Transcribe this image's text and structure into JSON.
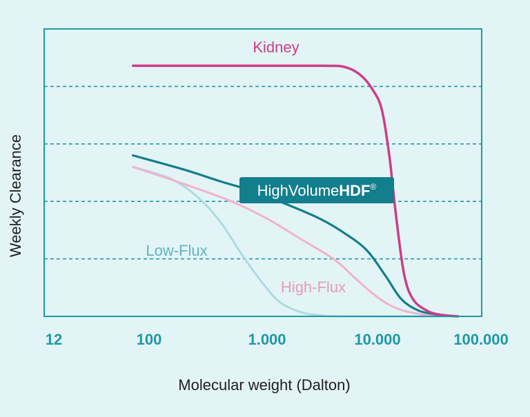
{
  "chart_data": {
    "type": "line",
    "title": "",
    "xlabel": "Molecular weight (Dalton)",
    "ylabel": "Weekly Clearance",
    "x_scale": "log",
    "xlim": [
      12,
      100000
    ],
    "ylim": [
      0,
      1
    ],
    "x_ticks": [
      12,
      100,
      1000,
      10000,
      100000
    ],
    "x_tick_labels": [
      "12",
      "100",
      "1.000",
      "10.000",
      "100.000"
    ],
    "y_grid_lines": [
      0.2,
      0.4,
      0.6,
      0.8
    ],
    "grid": "horizontal dashed",
    "legend": "inline labels",
    "series": [
      {
        "name": "Kidney",
        "color": "#cc3d86",
        "points": [
          [
            70,
            0.872
          ],
          [
            500,
            0.872
          ],
          [
            3000,
            0.872
          ],
          [
            5000,
            0.868
          ],
          [
            7000,
            0.84
          ],
          [
            9000,
            0.79
          ],
          [
            11000,
            0.72
          ],
          [
            13000,
            0.56
          ],
          [
            15000,
            0.36
          ],
          [
            18000,
            0.15
          ],
          [
            22000,
            0.06
          ],
          [
            30000,
            0.02
          ],
          [
            40000,
            0.006
          ],
          [
            60000,
            0.0
          ]
        ]
      },
      {
        "name": "HighVolumeHDF®",
        "color": "#137e8c",
        "points": [
          [
            70,
            0.56
          ],
          [
            200,
            0.51
          ],
          [
            400,
            0.47
          ],
          [
            700,
            0.44
          ],
          [
            1500,
            0.39
          ],
          [
            3000,
            0.34
          ],
          [
            5000,
            0.29
          ],
          [
            8000,
            0.23
          ],
          [
            12000,
            0.14
          ],
          [
            17000,
            0.06
          ],
          [
            25000,
            0.02
          ],
          [
            40000,
            0.005
          ],
          [
            60000,
            0.0
          ]
        ]
      },
      {
        "name": "High-Flux",
        "color": "#f2b2cc",
        "points": [
          [
            70,
            0.52
          ],
          [
            200,
            0.46
          ],
          [
            500,
            0.4
          ],
          [
            1000,
            0.34
          ],
          [
            2000,
            0.27
          ],
          [
            4000,
            0.2
          ],
          [
            6000,
            0.14
          ],
          [
            9000,
            0.08
          ],
          [
            13000,
            0.04
          ],
          [
            20000,
            0.015
          ],
          [
            35000,
            0.003
          ],
          [
            55000,
            0.0
          ]
        ]
      },
      {
        "name": "Low-Flux",
        "color": "#acdbe1",
        "points": [
          [
            70,
            0.52
          ],
          [
            150,
            0.48
          ],
          [
            250,
            0.42
          ],
          [
            400,
            0.33
          ],
          [
            600,
            0.22
          ],
          [
            900,
            0.12
          ],
          [
            1300,
            0.05
          ],
          [
            2000,
            0.015
          ],
          [
            3000,
            0.004
          ],
          [
            5000,
            0.0
          ],
          [
            60000,
            0.0
          ]
        ]
      }
    ],
    "annotations": [
      {
        "text": "Kidney",
        "series": "Kidney"
      },
      {
        "text": "HighVolume",
        "bold_suffix": "HDF",
        "superscript": "®",
        "series": "HighVolumeHDF®",
        "style": "boxed"
      },
      {
        "text": "High-Flux",
        "series": "High-Flux"
      },
      {
        "text": "Low-Flux",
        "series": "Low-Flux"
      }
    ],
    "colors": {
      "background": "#e3f4f6",
      "frame": "#1d99a6",
      "grid": "#1d99a6",
      "tick_text": "#1d99a6",
      "axis_label": "#1f1f1f",
      "badge": "#137e8c",
      "badge_text": "#ffffff"
    }
  }
}
